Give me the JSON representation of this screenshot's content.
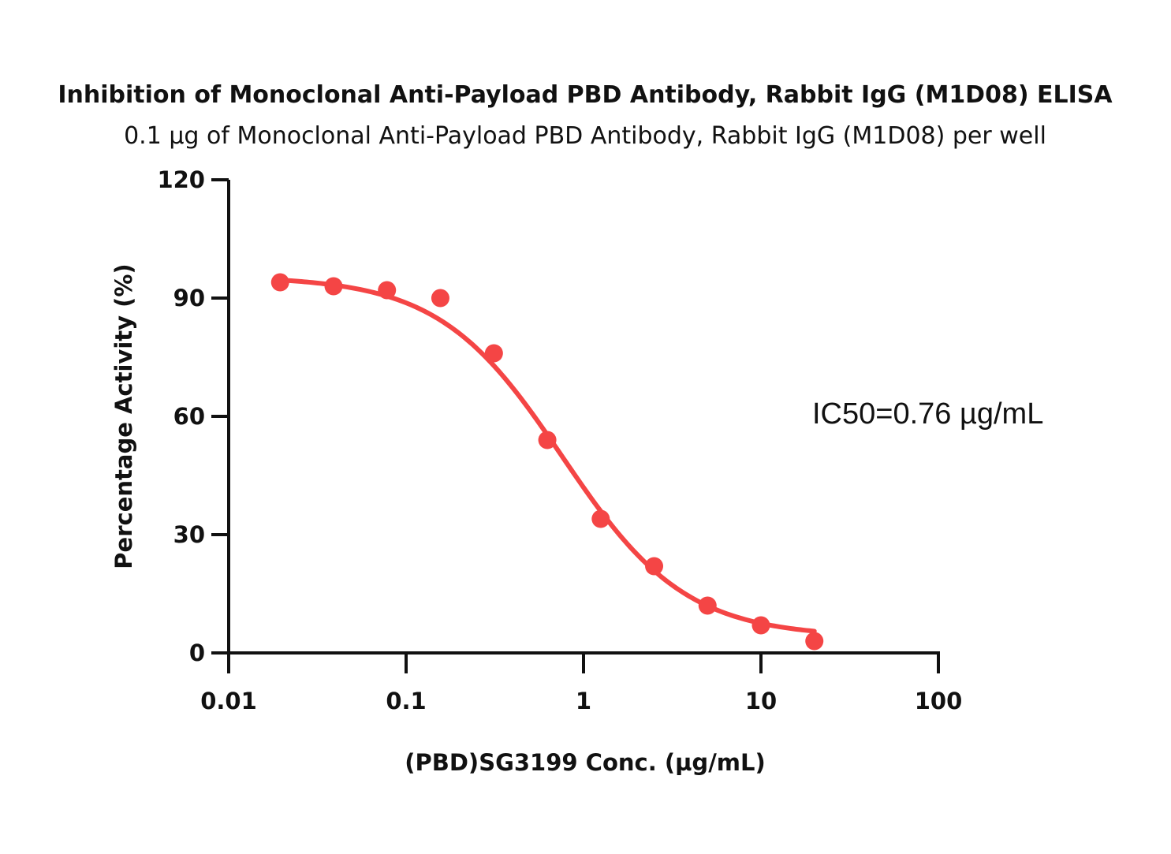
{
  "chart_data": {
    "type": "scatter",
    "title": "Inhibition of Monoclonal Anti-Payload PBD Antibody, Rabbit IgG (M1D08) ELISA",
    "subtitle": "0.1 µg of Monoclonal Anti-Payload PBD Antibody, Rabbit IgG (M1D08) per well",
    "xlabel": "(PBD)SG3199 Conc. (µg/mL)",
    "ylabel": "Percentage Activity (%)",
    "xscale": "log",
    "xlim": [
      0.01,
      100
    ],
    "ylim": [
      0,
      120
    ],
    "xticks": [
      0.01,
      0.1,
      1,
      10,
      100
    ],
    "xtick_labels": [
      "0.01",
      "0.1",
      "1",
      "10",
      "100"
    ],
    "yticks": [
      0,
      30,
      60,
      90,
      120
    ],
    "ytick_labels": [
      "0",
      "30",
      "60",
      "90",
      "120"
    ],
    "annotation": "IC50=0.76 µg/mL",
    "color": "#f44545",
    "series": [
      {
        "x": [
          0.0195,
          0.039,
          0.078,
          0.156,
          0.3125,
          0.625,
          1.25,
          2.5,
          5,
          10,
          20
        ],
        "y": [
          94,
          93,
          92,
          90,
          76,
          54,
          34,
          22,
          12,
          7,
          3
        ]
      }
    ],
    "fit": {
      "model": "4PL",
      "top": 95.5,
      "bottom": 4,
      "ic50": 0.76,
      "hill": 1.25,
      "x_range": [
        0.0195,
        20
      ]
    }
  }
}
